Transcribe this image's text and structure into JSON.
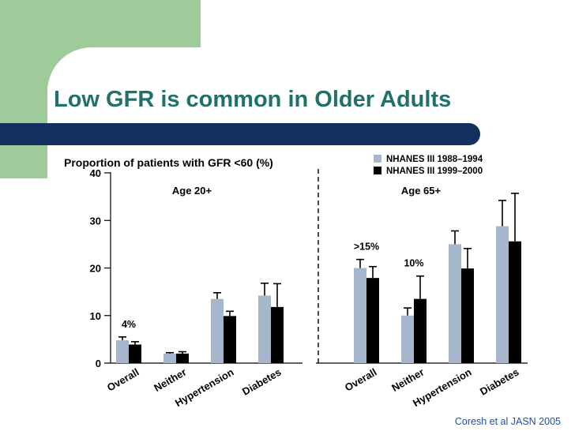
{
  "slide": {
    "title": "Low GFR is common in Older Adults",
    "citation": "Coresh et al JASN 2005"
  },
  "colors": {
    "green_block": "#9dcb99",
    "title_text": "#21716a",
    "navy_bar": "#14305e",
    "series_1988": "#a7b7cb",
    "series_1999": "#000000",
    "citation_text": "#1d4fa6"
  },
  "chart_data": {
    "type": "bar",
    "title": "Proportion of patients with GFR <60 (%)",
    "ylim": [
      0,
      40
    ],
    "yticks": [
      0,
      10,
      20,
      30,
      40
    ],
    "legend_position": "top-right",
    "series_names": [
      "NHANES III 1988–1994",
      "NHANES III 1999–2000"
    ],
    "groups": [
      {
        "label": "Age 20+",
        "categories": [
          "Overall",
          "Neither",
          "Hypertension",
          "Diabetes"
        ],
        "series": [
          {
            "name": "NHANES III 1988–1994",
            "values": [
              4.8,
              2.0,
              13.5,
              14.2
            ],
            "errors": [
              0.7,
              0.2,
              1.3,
              2.6
            ]
          },
          {
            "name": "NHANES III 1999–2000",
            "values": [
              3.9,
              2.0,
              9.9,
              11.8
            ],
            "errors": [
              0.6,
              0.4,
              1.0,
              4.9
            ]
          }
        ],
        "annotations": [
          {
            "text": "4%",
            "category": "Overall"
          }
        ]
      },
      {
        "label": "Age 65+",
        "categories": [
          "Overall",
          "Neither",
          "Hypertension",
          "Diabetes"
        ],
        "series": [
          {
            "name": "NHANES III 1988–1994",
            "values": [
              20.0,
              10.0,
              25.0,
              28.8
            ],
            "errors": [
              1.8,
              1.6,
              2.8,
              5.4
            ]
          },
          {
            "name": "NHANES III 1999–2000",
            "values": [
              17.9,
              13.5,
              19.9,
              25.6
            ],
            "errors": [
              2.4,
              4.8,
              4.2,
              10.1
            ]
          }
        ],
        "annotations": [
          {
            "text": ">15%",
            "category": "Overall"
          },
          {
            "text": "10%",
            "category": "Neither"
          }
        ]
      }
    ]
  }
}
